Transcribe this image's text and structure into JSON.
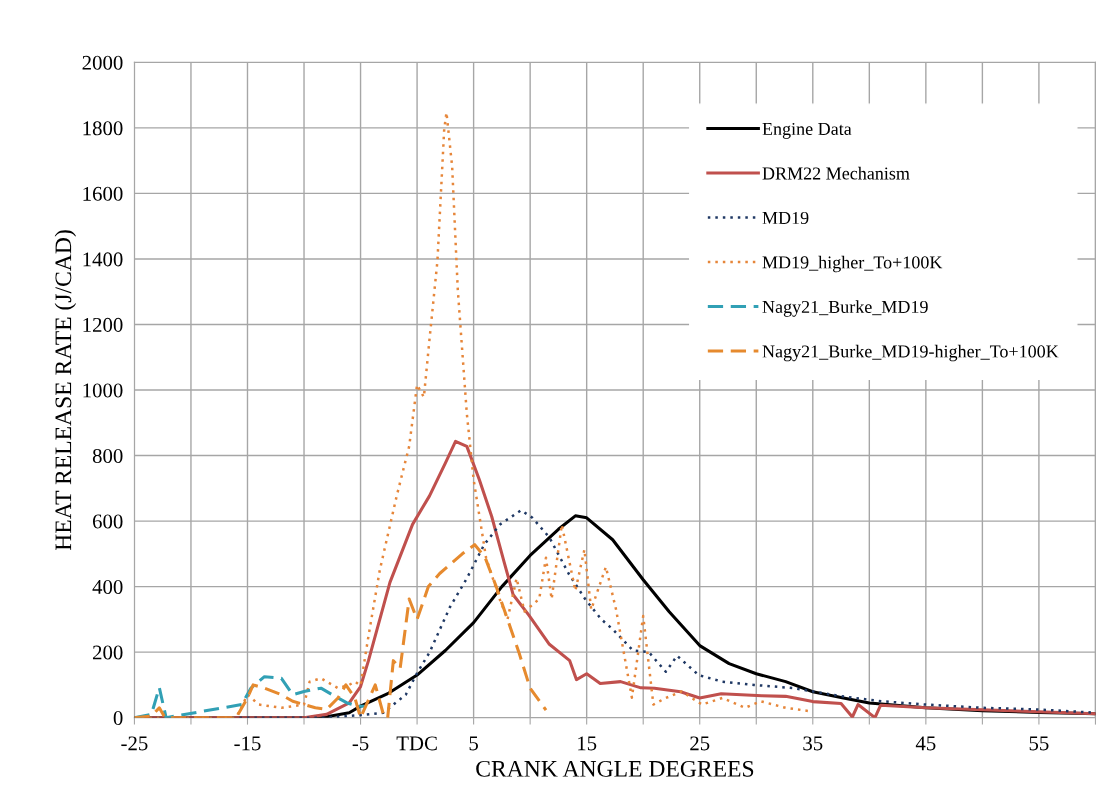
{
  "chart_data": {
    "type": "line",
    "xlabel": "CRANK ANGLE DEGREES",
    "ylabel": "HEAT RELEASE RATE (J/CAD)",
    "xlim": [
      -25,
      60
    ],
    "ylim": [
      0,
      2000
    ],
    "xticks": [
      -25,
      {
        "value": -20,
        "label": null
      },
      -15,
      {
        "value": -10,
        "label": null
      },
      -5,
      {
        "value": 0,
        "label": "TDC"
      },
      5,
      {
        "value": 10,
        "label": null
      },
      15,
      {
        "value": 20,
        "label": null
      },
      25,
      {
        "value": 30,
        "label": null
      },
      35,
      {
        "value": 40,
        "label": null
      },
      45,
      {
        "value": 50,
        "label": null
      },
      55,
      {
        "value": 60,
        "label": null
      }
    ],
    "yticks": [
      0,
      200,
      400,
      600,
      800,
      1000,
      1200,
      1400,
      1600,
      1800,
      2000
    ],
    "grid": true,
    "legend": "top right",
    "marker": "none",
    "series": [
      {
        "name": "Engine Data",
        "color": "#000000",
        "line_style": "solid",
        "x": [
          -25,
          -10,
          -8,
          -6,
          -5,
          -2.5,
          0,
          2.5,
          5,
          7.5,
          10,
          12.5,
          14,
          15,
          17.3,
          20,
          22.3,
          25,
          27.6,
          30,
          32.6,
          35,
          37.6,
          40,
          45,
          50,
          55,
          60
        ],
        "values": [
          0,
          0,
          3,
          15,
          35,
          75,
          130,
          205,
          290,
          400,
          495,
          575,
          616,
          610,
          543,
          421,
          323,
          220,
          165,
          134,
          110,
          79,
          61,
          45,
          30,
          21,
          16,
          12
        ]
      },
      {
        "name": "DRM22 Mechanism",
        "color": "#c0504d",
        "line_style": "solid",
        "x": [
          -25,
          -10,
          -8,
          -6,
          -5,
          -4.3,
          -2.4,
          -0.4,
          1.1,
          2.5,
          3.4,
          4.4,
          5.5,
          6.6,
          7.7,
          8.5,
          9.9,
          11.7,
          13.5,
          14.1,
          15,
          16.2,
          18,
          19.8,
          21,
          23.3,
          25,
          26.9,
          30.5,
          32.6,
          35,
          37.5,
          38.5,
          39,
          40.5,
          41,
          45,
          50,
          55,
          60
        ],
        "values": [
          0,
          0,
          10,
          45,
          95,
          174,
          413,
          590,
          677,
          777,
          843,
          828,
          727,
          614,
          475,
          375,
          312,
          224,
          174,
          116,
          134,
          104,
          110,
          91,
          90,
          79,
          60,
          73,
          67,
          65,
          49,
          43,
          2,
          40,
          0,
          38,
          30,
          24,
          18,
          12
        ]
      },
      {
        "name": "MD19",
        "color": "#1f3864",
        "line_style": "dotted",
        "x": [
          -25,
          -8,
          -5,
          -3,
          -1,
          0,
          1.1,
          2.9,
          4.4,
          5.9,
          7.3,
          9.2,
          10.2,
          11.7,
          13.4,
          14.9,
          16.3,
          17.3,
          19.1,
          20.5,
          22,
          23,
          24.9,
          27,
          29.8,
          33.3,
          37.6,
          41.1,
          45,
          50,
          55,
          60
        ],
        "values": [
          0,
          0,
          8,
          15,
          70,
          136,
          199,
          337,
          425,
          526,
          589,
          633,
          610,
          550,
          440,
          360,
          300,
          270,
          205,
          200,
          140,
          189,
          130,
          110,
          100,
          90,
          65,
          50,
          40,
          30,
          25,
          15
        ]
      },
      {
        "name": "MD19_higher_To+100K",
        "color": "#e6863a",
        "line_style": "dotted",
        "x": [
          -25,
          -16,
          -15,
          -14,
          -12,
          -10,
          -9.5,
          -8.5,
          -7,
          -6,
          -5.5,
          -5,
          -4.3,
          -3.3,
          -1.8,
          -0.7,
          0,
          0.6,
          1.1,
          1.8,
          2.4,
          2.6,
          3.1,
          3.6,
          4.4,
          5,
          6.1,
          7.3,
          8,
          8.8,
          9.5,
          10.8,
          11.4,
          11.9,
          12.8,
          14,
          14.8,
          15.4,
          16.7,
          17.6,
          19,
          20,
          20.9,
          22,
          23.4,
          25.2,
          27,
          29,
          30.4,
          32.6,
          34.7
        ],
        "values": [
          0,
          0,
          70,
          40,
          30,
          40,
          110,
          120,
          90,
          100,
          110,
          98,
          249,
          450,
          677,
          828,
          1016,
          978,
          1155,
          1394,
          1796,
          1847,
          1683,
          1306,
          928,
          727,
          488,
          362,
          300,
          425,
          324,
          362,
          488,
          362,
          589,
          387,
          513,
          330,
          460,
          330,
          61,
          310,
          40,
          60,
          80,
          40,
          60,
          30,
          50,
          30,
          20
        ]
      },
      {
        "name": "Nagy21_Burke_MD19",
        "color": "#31a0b5",
        "line_style": "dashed",
        "x": [
          -25,
          -23.5,
          -22.8,
          -22.2,
          -15.5,
          -14.7,
          -13.5,
          -12,
          -11,
          -10,
          -8.5,
          -7.5,
          -6.2,
          -5.2,
          -4.6
        ],
        "values": [
          0,
          10,
          92,
          0,
          40,
          90,
          125,
          120,
          70,
          80,
          90,
          70,
          45,
          35,
          35
        ]
      },
      {
        "name": "Nagy21_Burke_MD19-higher_To+100K",
        "color": "#e68a2e",
        "line_style": "dashed",
        "x": [
          -25,
          -23.5,
          -22.8,
          -22.3,
          -16,
          -15,
          -14.5,
          -13.5,
          -12,
          -11,
          -10,
          -9,
          -8,
          -7,
          -6.3,
          -5.5,
          -5,
          -3.7,
          -2.9,
          -2.6,
          -2.1,
          -1.5,
          -0.7,
          0,
          1,
          2,
          3,
          4,
          5.1,
          6,
          7,
          8,
          9,
          10,
          11.4
        ],
        "values": [
          0,
          5,
          30,
          0,
          0,
          60,
          100,
          90,
          70,
          50,
          40,
          30,
          25,
          60,
          100,
          60,
          0,
          100,
          0,
          0,
          174,
          150,
          362,
          300,
          400,
          440,
          470,
          500,
          528,
          490,
          400,
          300,
          200,
          90,
          23
        ]
      }
    ]
  }
}
